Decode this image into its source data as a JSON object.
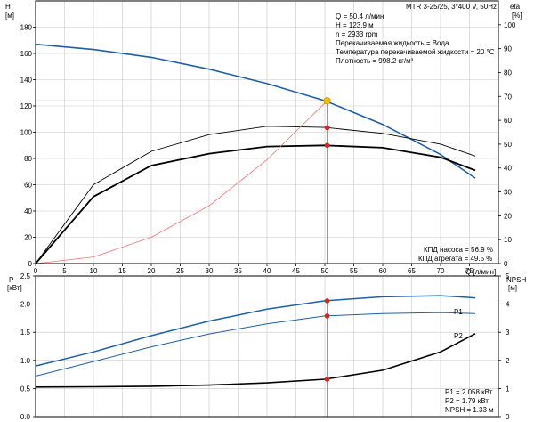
{
  "chart_data": {
    "type": "line",
    "title": "MTR 3-25/25, 3*400 V, 50Hz",
    "info_lines": [
      "Q = 50.4 л/мин",
      "H = 123.9 м",
      "n = 2933 rpm",
      "Перекачиваемая жидкость = Вода",
      "Температура перекачиваемой жидкости = 20 °C",
      "Плотность = 998.2 кг/м³"
    ],
    "x_axis": {
      "label": "Q [л/мин]",
      "range": [
        0,
        80
      ],
      "ticks": [
        "0",
        "5",
        "10",
        "15",
        "20",
        "25",
        "30",
        "35",
        "40",
        "45",
        "50",
        "55",
        "60",
        "65",
        "70",
        "75"
      ]
    },
    "top_panel": {
      "left_axis": {
        "label": "H",
        "unit": "[м]",
        "range": [
          0,
          200
        ],
        "ticks": [
          "0",
          "20",
          "40",
          "60",
          "80",
          "100",
          "120",
          "140",
          "160",
          "180"
        ]
      },
      "right_axis": {
        "label": "eta",
        "unit": "[%]",
        "range": [
          0,
          110
        ],
        "ticks": [
          "0",
          "10",
          "20",
          "30",
          "40",
          "50",
          "60",
          "70",
          "80",
          "90",
          "100"
        ]
      },
      "series": [
        {
          "name": "H",
          "axis": "left",
          "color": "#1f5fa8",
          "x": [
            0,
            10,
            20,
            30,
            40,
            50,
            60,
            70,
            76
          ],
          "y": [
            167,
            163,
            157,
            148,
            137,
            124,
            106,
            83,
            65
          ]
        },
        {
          "name": "КПД насоса",
          "axis": "right",
          "color": "#000000",
          "x": [
            0,
            10,
            20,
            30,
            40,
            50,
            60,
            70,
            76
          ],
          "y": [
            0,
            33,
            47,
            54,
            57.5,
            57,
            54.5,
            50,
            45
          ]
        },
        {
          "name": "КПД агрегата",
          "axis": "right",
          "color": "#000000",
          "x": [
            0,
            10,
            20,
            30,
            40,
            50,
            60,
            70,
            76
          ],
          "y": [
            0,
            28,
            41,
            46,
            49,
            49.5,
            48.5,
            44.5,
            39
          ]
        },
        {
          "name": "system_curve",
          "axis": "left",
          "color": "#f07070",
          "x": [
            0,
            10,
            20,
            30,
            40,
            50.4
          ],
          "y": [
            0,
            5,
            20,
            44,
            79,
            123.9
          ]
        }
      ],
      "markers": [
        {
          "x": 50.4,
          "y": 123.9,
          "axis": "left",
          "color": "#f5c000"
        },
        {
          "x": 50.4,
          "y": 56.9,
          "axis": "right",
          "color": "#e02020"
        },
        {
          "x": 50.4,
          "y": 49.5,
          "axis": "right",
          "color": "#e02020"
        }
      ],
      "annotations": [
        "КПД насоса = 56.9 %",
        "КПД агрегата = 49.5 %"
      ]
    },
    "bottom_panel": {
      "left_axis": {
        "label": "P",
        "unit": "[кВт]",
        "range": [
          0,
          2.5
        ],
        "ticks": [
          "0.0",
          "0.5",
          "1.0",
          "1.5",
          "2.0",
          "2.5"
        ]
      },
      "right_axis": {
        "label": "NPSH",
        "unit": "[м]",
        "range": [
          0,
          5
        ],
        "ticks": [
          "0",
          "1",
          "2",
          "3",
          "4",
          "5"
        ]
      },
      "series": [
        {
          "name": "P1",
          "axis": "left",
          "color": "#1f5fa8",
          "x": [
            0,
            10,
            20,
            30,
            40,
            50,
            60,
            70,
            76
          ],
          "y": [
            0.9,
            1.15,
            1.44,
            1.7,
            1.91,
            2.058,
            2.13,
            2.15,
            2.11
          ]
        },
        {
          "name": "P2",
          "axis": "left",
          "color": "#1f5fa8",
          "x": [
            0,
            10,
            20,
            30,
            40,
            50,
            60,
            70,
            76
          ],
          "y": [
            0.72,
            0.98,
            1.24,
            1.47,
            1.65,
            1.79,
            1.83,
            1.85,
            1.83
          ]
        },
        {
          "name": "NPSH",
          "axis": "right",
          "color": "#000000",
          "x": [
            0,
            10,
            20,
            30,
            40,
            50,
            60,
            70,
            76
          ],
          "y": [
            1.05,
            1.06,
            1.08,
            1.12,
            1.2,
            1.33,
            1.65,
            2.3,
            2.95
          ]
        }
      ],
      "markers": [
        {
          "x": 50.4,
          "y": 2.058,
          "axis": "left",
          "color": "#e02020"
        },
        {
          "x": 50.4,
          "y": 1.79,
          "axis": "left",
          "color": "#e02020"
        },
        {
          "x": 50.4,
          "y": 1.33,
          "axis": "right",
          "color": "#e02020"
        }
      ],
      "series_labels": [
        "P1",
        "P2"
      ],
      "annotations": [
        "P1 = 2.058 кВт",
        "P2 = 1.79 кВт",
        "NPSH = 1.33 м"
      ]
    },
    "duty_point_x": 50.4,
    "grid": true
  }
}
